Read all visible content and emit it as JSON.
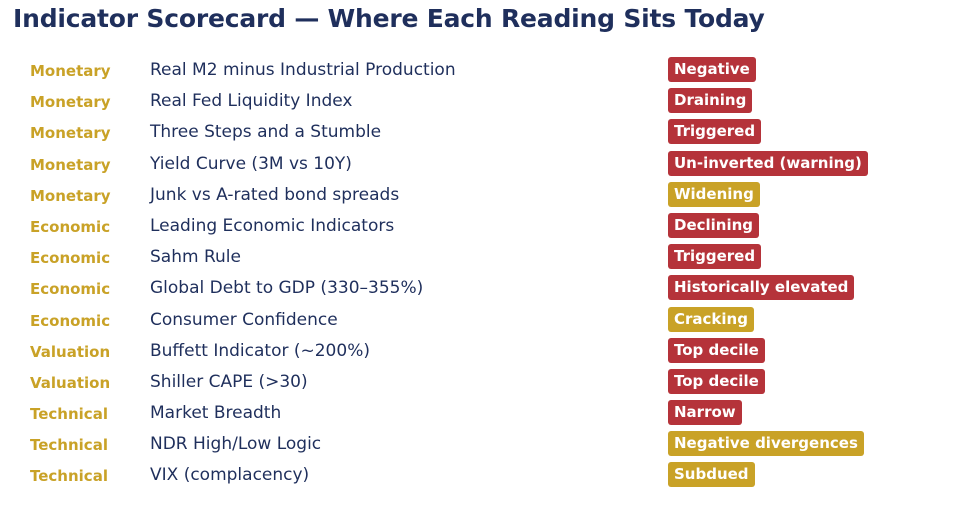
{
  "title": "Indicator Scorecard — Where Each Reading Sits Today",
  "colors": {
    "title": "#1f2f5c",
    "category": "#c9a227",
    "indicator": "#1f2f5c",
    "badge_red": "#b5333a",
    "badge_gold": "#c9a227"
  },
  "rows": [
    {
      "category": "Monetary",
      "indicator": "Real M2 minus Industrial Production",
      "reading": "Negative",
      "status": "red"
    },
    {
      "category": "Monetary",
      "indicator": "Real Fed Liquidity Index",
      "reading": "Draining",
      "status": "red"
    },
    {
      "category": "Monetary",
      "indicator": "Three Steps and a Stumble",
      "reading": "Triggered",
      "status": "red"
    },
    {
      "category": "Monetary",
      "indicator": "Yield Curve (3M vs 10Y)",
      "reading": "Un-inverted (warning)",
      "status": "red"
    },
    {
      "category": "Monetary",
      "indicator": "Junk vs A-rated bond spreads",
      "reading": "Widening",
      "status": "gold"
    },
    {
      "category": "Economic",
      "indicator": "Leading Economic Indicators",
      "reading": "Declining",
      "status": "red"
    },
    {
      "category": "Economic",
      "indicator": "Sahm Rule",
      "reading": "Triggered",
      "status": "red"
    },
    {
      "category": "Economic",
      "indicator": "Global Debt to GDP (330–355%)",
      "reading": "Historically elevated",
      "status": "red"
    },
    {
      "category": "Economic",
      "indicator": "Consumer Confidence",
      "reading": "Cracking",
      "status": "gold"
    },
    {
      "category": "Valuation",
      "indicator": "Buffett Indicator (~200%)",
      "reading": "Top decile",
      "status": "red"
    },
    {
      "category": "Valuation",
      "indicator": "Shiller CAPE (>30)",
      "reading": "Top decile",
      "status": "red"
    },
    {
      "category": "Technical",
      "indicator": "Market Breadth",
      "reading": "Narrow",
      "status": "red"
    },
    {
      "category": "Technical",
      "indicator": "NDR High/Low Logic",
      "reading": "Negative divergences",
      "status": "gold"
    },
    {
      "category": "Technical",
      "indicator": "VIX (complacency)",
      "reading": "Subdued",
      "status": "gold"
    }
  ]
}
